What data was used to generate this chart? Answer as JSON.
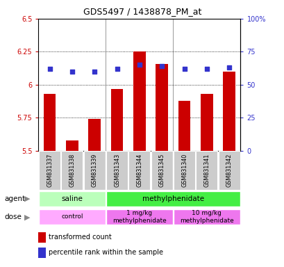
{
  "title": "GDS5497 / 1438878_PM_at",
  "samples": [
    "GSM831337",
    "GSM831338",
    "GSM831339",
    "GSM831343",
    "GSM831344",
    "GSM831345",
    "GSM831340",
    "GSM831341",
    "GSM831342"
  ],
  "bar_values": [
    5.93,
    5.58,
    5.74,
    5.97,
    6.25,
    6.16,
    5.88,
    5.93,
    6.1
  ],
  "dot_values": [
    62,
    60,
    60,
    62,
    65,
    64,
    62,
    62,
    63
  ],
  "ylim_left": [
    5.5,
    6.5
  ],
  "ylim_right": [
    0,
    100
  ],
  "yticks_left": [
    5.5,
    5.75,
    6.0,
    6.25,
    6.5
  ],
  "yticks_right": [
    0,
    25,
    50,
    75,
    100
  ],
  "ytick_labels_left": [
    "5.5",
    "5.75",
    "6",
    "6.25",
    "6.5"
  ],
  "ytick_labels_right": [
    "0",
    "25",
    "50",
    "75",
    "100%"
  ],
  "bar_color": "#cc0000",
  "dot_color": "#3333cc",
  "bar_bottom": 5.5,
  "agent_labels": [
    {
      "text": "saline",
      "start": 0,
      "end": 3,
      "color": "#bbffbb"
    },
    {
      "text": "methylphenidate",
      "start": 3,
      "end": 9,
      "color": "#44ee44"
    }
  ],
  "dose_labels": [
    {
      "text": "control",
      "start": 0,
      "end": 3,
      "color": "#ffaaff"
    },
    {
      "text": "1 mg/kg\nmethylphenidate",
      "start": 3,
      "end": 6,
      "color": "#ee77ee"
    },
    {
      "text": "10 mg/kg\nmethylphenidate",
      "start": 6,
      "end": 9,
      "color": "#ee77ee"
    }
  ],
  "legend_bar_label": "transformed count",
  "legend_dot_label": "percentile rank within the sample",
  "agent_row_label": "agent",
  "dose_row_label": "dose",
  "bg_color": "#ffffff",
  "plot_bg": "#ffffff",
  "tick_bg": "#cccccc",
  "group_dividers": [
    2.5,
    5.5
  ]
}
